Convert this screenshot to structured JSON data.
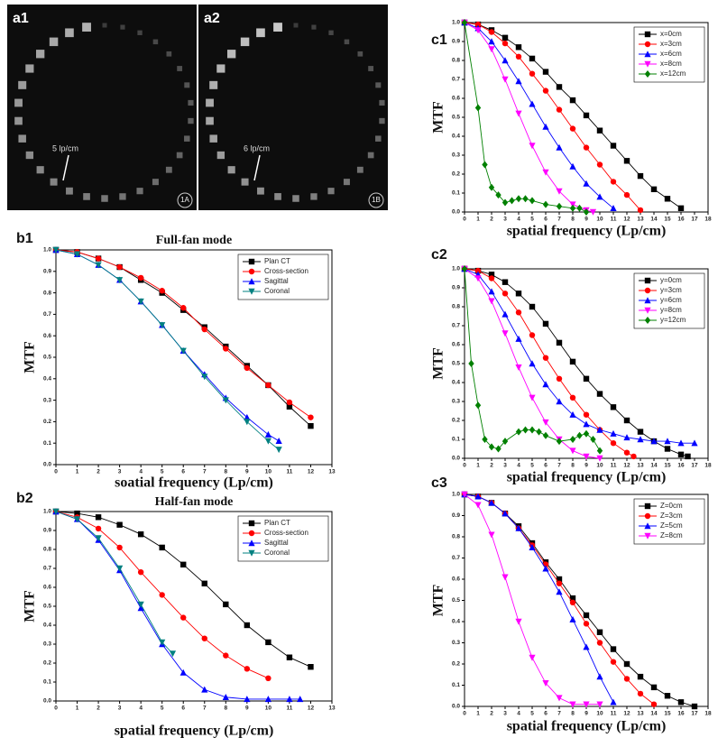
{
  "images": [
    {
      "label": "a1",
      "annotation": "5 lp/cm",
      "tag": "1A"
    },
    {
      "label": "a2",
      "annotation": "6 lp/cm",
      "tag": "1B"
    }
  ],
  "chart_data": [
    {
      "type": "line",
      "label": "b1",
      "title": "Full-fan mode",
      "xlabel": "soatial frequency (Lp/cm)",
      "ylabel": "MTF",
      "xlim": [
        0,
        13
      ],
      "ylim": [
        0,
        1
      ],
      "xticks": [
        0,
        1,
        2,
        3,
        4,
        5,
        6,
        7,
        8,
        9,
        10,
        11,
        12,
        13
      ],
      "yticks": [
        {
          "value": 0,
          "label": "0.0"
        },
        0.1,
        0.2,
        0.3,
        0.4,
        0.5,
        0.6,
        0.7,
        0.8,
        0.9,
        {
          "value": 1,
          "label": "1.0"
        }
      ],
      "series": [
        {
          "name": "Plan CT",
          "color": "#000000",
          "marker": "square",
          "x": [
            0,
            1,
            2,
            3,
            4,
            5,
            6,
            7,
            8,
            9,
            10,
            11,
            12
          ],
          "values": [
            1.0,
            0.99,
            0.96,
            0.92,
            0.86,
            0.8,
            0.72,
            0.64,
            0.55,
            0.46,
            0.37,
            0.27,
            0.18
          ]
        },
        {
          "name": "Cross-section",
          "color": "#ff0000",
          "marker": "circle",
          "x": [
            0,
            1,
            2,
            3,
            4,
            5,
            6,
            7,
            8,
            9,
            10,
            11,
            12
          ],
          "values": [
            1.0,
            0.99,
            0.96,
            0.92,
            0.87,
            0.81,
            0.73,
            0.63,
            0.54,
            0.45,
            0.37,
            0.29,
            0.22
          ]
        },
        {
          "name": "Sagittal",
          "color": "#0000ff",
          "marker": "triangle-up",
          "x": [
            0,
            1,
            2,
            3,
            4,
            5,
            6,
            7,
            8,
            9,
            10,
            10.5
          ],
          "values": [
            1.0,
            0.98,
            0.93,
            0.86,
            0.76,
            0.65,
            0.53,
            0.42,
            0.31,
            0.22,
            0.14,
            0.11
          ]
        },
        {
          "name": "Coronal",
          "color": "#008080",
          "marker": "triangle-down",
          "x": [
            0,
            1,
            2,
            3,
            4,
            5,
            6,
            7,
            8,
            9,
            10,
            10.5
          ],
          "values": [
            1.0,
            0.98,
            0.93,
            0.86,
            0.76,
            0.65,
            0.53,
            0.41,
            0.3,
            0.2,
            0.11,
            0.07
          ]
        }
      ]
    },
    {
      "type": "line",
      "label": "b2",
      "title": "Half-fan mode",
      "xlabel": "spatial frequency (Lp/cm)",
      "ylabel": "MTF",
      "xlim": [
        0,
        13
      ],
      "ylim": [
        0,
        1
      ],
      "xticks": [
        0,
        1,
        2,
        3,
        4,
        5,
        6,
        7,
        8,
        9,
        10,
        11,
        12,
        13
      ],
      "yticks": [
        {
          "value": 0,
          "label": "0.0"
        },
        0.1,
        0.2,
        0.3,
        0.4,
        0.5,
        0.6,
        0.7,
        0.8,
        0.9,
        {
          "value": 1,
          "label": "1.0"
        }
      ],
      "series": [
        {
          "name": "Plan CT",
          "color": "#000000",
          "marker": "square",
          "x": [
            0,
            1,
            2,
            3,
            4,
            5,
            6,
            7,
            8,
            9,
            10,
            11,
            12
          ],
          "values": [
            1.0,
            0.99,
            0.97,
            0.93,
            0.88,
            0.81,
            0.72,
            0.62,
            0.51,
            0.4,
            0.31,
            0.23,
            0.18
          ]
        },
        {
          "name": "Cross-section",
          "color": "#ff0000",
          "marker": "circle",
          "x": [
            0,
            1,
            2,
            3,
            4,
            5,
            6,
            7,
            8,
            9,
            10
          ],
          "values": [
            1.0,
            0.97,
            0.91,
            0.81,
            0.68,
            0.56,
            0.44,
            0.33,
            0.24,
            0.17,
            0.12
          ]
        },
        {
          "name": "Sagittal",
          "color": "#0000ff",
          "marker": "triangle-up",
          "x": [
            0,
            1,
            2,
            3,
            4,
            5,
            6,
            7,
            8,
            9,
            10,
            11,
            11.5
          ],
          "values": [
            1.0,
            0.96,
            0.85,
            0.69,
            0.49,
            0.3,
            0.15,
            0.06,
            0.02,
            0.01,
            0.01,
            0.01,
            0.01
          ]
        },
        {
          "name": "Coronal",
          "color": "#008080",
          "marker": "triangle-down",
          "x": [
            0,
            1,
            2,
            3,
            4,
            5,
            5.5
          ],
          "values": [
            1.0,
            0.96,
            0.86,
            0.7,
            0.51,
            0.31,
            0.25
          ]
        }
      ]
    },
    {
      "type": "line",
      "label": "c1",
      "xlabel": "spatial frequency (Lp/cm)",
      "ylabel": "MTF",
      "xlim": [
        0,
        18
      ],
      "ylim": [
        0,
        1
      ],
      "xticks": [
        0,
        1,
        2,
        3,
        4,
        5,
        6,
        7,
        8,
        9,
        10,
        11,
        12,
        13,
        14,
        15,
        16,
        17,
        18
      ],
      "yticks": [
        {
          "value": 0,
          "label": "0.0"
        },
        0.1,
        0.2,
        0.3,
        0.4,
        0.5,
        0.6,
        0.7,
        0.8,
        0.9,
        {
          "value": 1,
          "label": "1.0"
        }
      ],
      "series": [
        {
          "name": "x=0cm",
          "color": "#000000",
          "marker": "square",
          "x": [
            0,
            1,
            2,
            3,
            4,
            5,
            6,
            7,
            8,
            9,
            10,
            11,
            12,
            13,
            14,
            15,
            16
          ],
          "values": [
            1.0,
            0.99,
            0.96,
            0.92,
            0.87,
            0.81,
            0.74,
            0.66,
            0.59,
            0.51,
            0.43,
            0.35,
            0.27,
            0.19,
            0.12,
            0.07,
            0.02
          ]
        },
        {
          "name": "x=3cm",
          "color": "#ff0000",
          "marker": "circle",
          "x": [
            0,
            1,
            2,
            3,
            4,
            5,
            6,
            7,
            8,
            9,
            10,
            11,
            12,
            13
          ],
          "values": [
            1.0,
            0.99,
            0.95,
            0.89,
            0.82,
            0.73,
            0.64,
            0.54,
            0.44,
            0.34,
            0.25,
            0.16,
            0.09,
            0.01
          ]
        },
        {
          "name": "x=6cm",
          "color": "#0000ff",
          "marker": "triangle-up",
          "x": [
            0,
            1,
            2,
            3,
            4,
            5,
            6,
            7,
            8,
            9,
            10,
            11
          ],
          "values": [
            1.0,
            0.97,
            0.9,
            0.8,
            0.69,
            0.57,
            0.45,
            0.34,
            0.24,
            0.15,
            0.08,
            0.02
          ]
        },
        {
          "name": "x=8cm",
          "color": "#ff00ff",
          "marker": "triangle-down",
          "x": [
            0,
            1,
            2,
            3,
            4,
            5,
            6,
            7,
            8,
            9,
            9.5
          ],
          "values": [
            1.0,
            0.96,
            0.86,
            0.7,
            0.52,
            0.35,
            0.21,
            0.11,
            0.04,
            0.01,
            0
          ]
        },
        {
          "name": "x=12cm",
          "color": "#008000",
          "marker": "diamond",
          "x": [
            0,
            1,
            1.5,
            2,
            2.5,
            3,
            3.5,
            4,
            4.5,
            5,
            6,
            7,
            8,
            8.5,
            9
          ],
          "values": [
            1.0,
            0.55,
            0.25,
            0.13,
            0.09,
            0.05,
            0.06,
            0.07,
            0.07,
            0.06,
            0.04,
            0.03,
            0.02,
            0.02,
            0
          ]
        }
      ]
    },
    {
      "type": "line",
      "label": "c2",
      "xlabel": "spatial frequency (Lp/cm)",
      "ylabel": "MTF",
      "xlim": [
        0,
        18
      ],
      "ylim": [
        0,
        1
      ],
      "xticks": [
        0,
        1,
        2,
        3,
        4,
        5,
        6,
        7,
        8,
        9,
        10,
        11,
        12,
        13,
        14,
        15,
        16,
        17,
        18
      ],
      "yticks": [
        {
          "value": 0,
          "label": "0.0"
        },
        0.1,
        0.2,
        0.3,
        0.4,
        0.5,
        0.6,
        0.7,
        0.8,
        0.9,
        {
          "value": 1,
          "label": "1.0"
        }
      ],
      "series": [
        {
          "name": "y=0cm",
          "color": "#000000",
          "marker": "square",
          "x": [
            0,
            1,
            2,
            3,
            4,
            5,
            6,
            7,
            8,
            9,
            10,
            11,
            12,
            13,
            14,
            15,
            16,
            16.5
          ],
          "values": [
            1.0,
            0.99,
            0.97,
            0.93,
            0.87,
            0.8,
            0.71,
            0.61,
            0.51,
            0.42,
            0.34,
            0.27,
            0.2,
            0.14,
            0.09,
            0.05,
            0.02,
            0.01
          ]
        },
        {
          "name": "y=3cm",
          "color": "#ff0000",
          "marker": "circle",
          "x": [
            0,
            1,
            2,
            3,
            4,
            5,
            6,
            7,
            8,
            9,
            10,
            11,
            12,
            12.5
          ],
          "values": [
            1.0,
            0.99,
            0.95,
            0.87,
            0.77,
            0.65,
            0.53,
            0.42,
            0.32,
            0.23,
            0.15,
            0.08,
            0.03,
            0.01
          ]
        },
        {
          "name": "y=6cm",
          "color": "#0000ff",
          "marker": "triangle-up",
          "x": [
            0,
            1,
            2,
            3,
            4,
            5,
            6,
            7,
            8,
            9,
            10,
            11,
            12,
            13,
            14,
            15,
            16,
            17
          ],
          "values": [
            1.0,
            0.97,
            0.88,
            0.76,
            0.63,
            0.5,
            0.39,
            0.3,
            0.23,
            0.18,
            0.15,
            0.13,
            0.11,
            0.1,
            0.09,
            0.09,
            0.08,
            0.08
          ]
        },
        {
          "name": "y=8cm",
          "color": "#ff00ff",
          "marker": "triangle-down",
          "x": [
            0,
            1,
            2,
            3,
            4,
            5,
            6,
            7,
            8,
            9,
            10
          ],
          "values": [
            1.0,
            0.95,
            0.83,
            0.66,
            0.48,
            0.32,
            0.19,
            0.1,
            0.04,
            0.01,
            0
          ]
        },
        {
          "name": "y=12cm",
          "color": "#008000",
          "marker": "diamond",
          "x": [
            0,
            0.5,
            1,
            1.5,
            2,
            2.5,
            3,
            4,
            4.5,
            5,
            5.5,
            6,
            7,
            8,
            8.5,
            9,
            9.5,
            10
          ],
          "values": [
            1.0,
            0.5,
            0.28,
            0.1,
            0.06,
            0.05,
            0.09,
            0.14,
            0.15,
            0.15,
            0.14,
            0.12,
            0.09,
            0.1,
            0.12,
            0.13,
            0.1,
            0.04
          ]
        }
      ]
    },
    {
      "type": "line",
      "label": "c3",
      "xlabel": "spatial frequency (Lp/cm)",
      "ylabel": "MTF",
      "xlim": [
        0,
        18
      ],
      "ylim": [
        0,
        1
      ],
      "xticks": [
        0,
        1,
        2,
        3,
        4,
        5,
        6,
        7,
        8,
        9,
        10,
        11,
        12,
        13,
        14,
        15,
        16,
        17,
        18
      ],
      "yticks": [
        {
          "value": 0,
          "label": "0.0"
        },
        0.1,
        0.2,
        0.3,
        0.4,
        0.5,
        0.6,
        0.7,
        0.8,
        0.9,
        {
          "value": 1,
          "label": "1.0"
        }
      ],
      "series": [
        {
          "name": "Z=0cm",
          "color": "#000000",
          "marker": "square",
          "x": [
            0,
            1,
            2,
            3,
            4,
            5,
            6,
            7,
            8,
            9,
            10,
            11,
            12,
            13,
            14,
            15,
            16,
            17
          ],
          "values": [
            1.0,
            0.99,
            0.96,
            0.91,
            0.85,
            0.77,
            0.68,
            0.6,
            0.51,
            0.43,
            0.35,
            0.27,
            0.2,
            0.14,
            0.09,
            0.05,
            0.02,
            0
          ]
        },
        {
          "name": "Z=3cm",
          "color": "#ff0000",
          "marker": "circle",
          "x": [
            0,
            1,
            2,
            3,
            4,
            5,
            6,
            7,
            8,
            9,
            10,
            11,
            12,
            13,
            14
          ],
          "values": [
            1.0,
            0.99,
            0.96,
            0.91,
            0.84,
            0.76,
            0.67,
            0.58,
            0.49,
            0.39,
            0.3,
            0.21,
            0.13,
            0.06,
            0.01
          ]
        },
        {
          "name": "Z=5cm",
          "color": "#0000ff",
          "marker": "triangle-up",
          "x": [
            0,
            1,
            2,
            3,
            4,
            5,
            6,
            7,
            8,
            9,
            10,
            11
          ],
          "values": [
            1.0,
            0.99,
            0.96,
            0.91,
            0.84,
            0.75,
            0.65,
            0.54,
            0.41,
            0.28,
            0.14,
            0.02
          ]
        },
        {
          "name": "Z=8cm",
          "color": "#ff00ff",
          "marker": "triangle-down",
          "x": [
            0,
            1,
            2,
            3,
            4,
            5,
            6,
            7,
            8,
            9,
            10
          ],
          "values": [
            1.0,
            0.95,
            0.81,
            0.61,
            0.4,
            0.23,
            0.11,
            0.04,
            0.01,
            0.01,
            0.01
          ]
        }
      ]
    }
  ]
}
